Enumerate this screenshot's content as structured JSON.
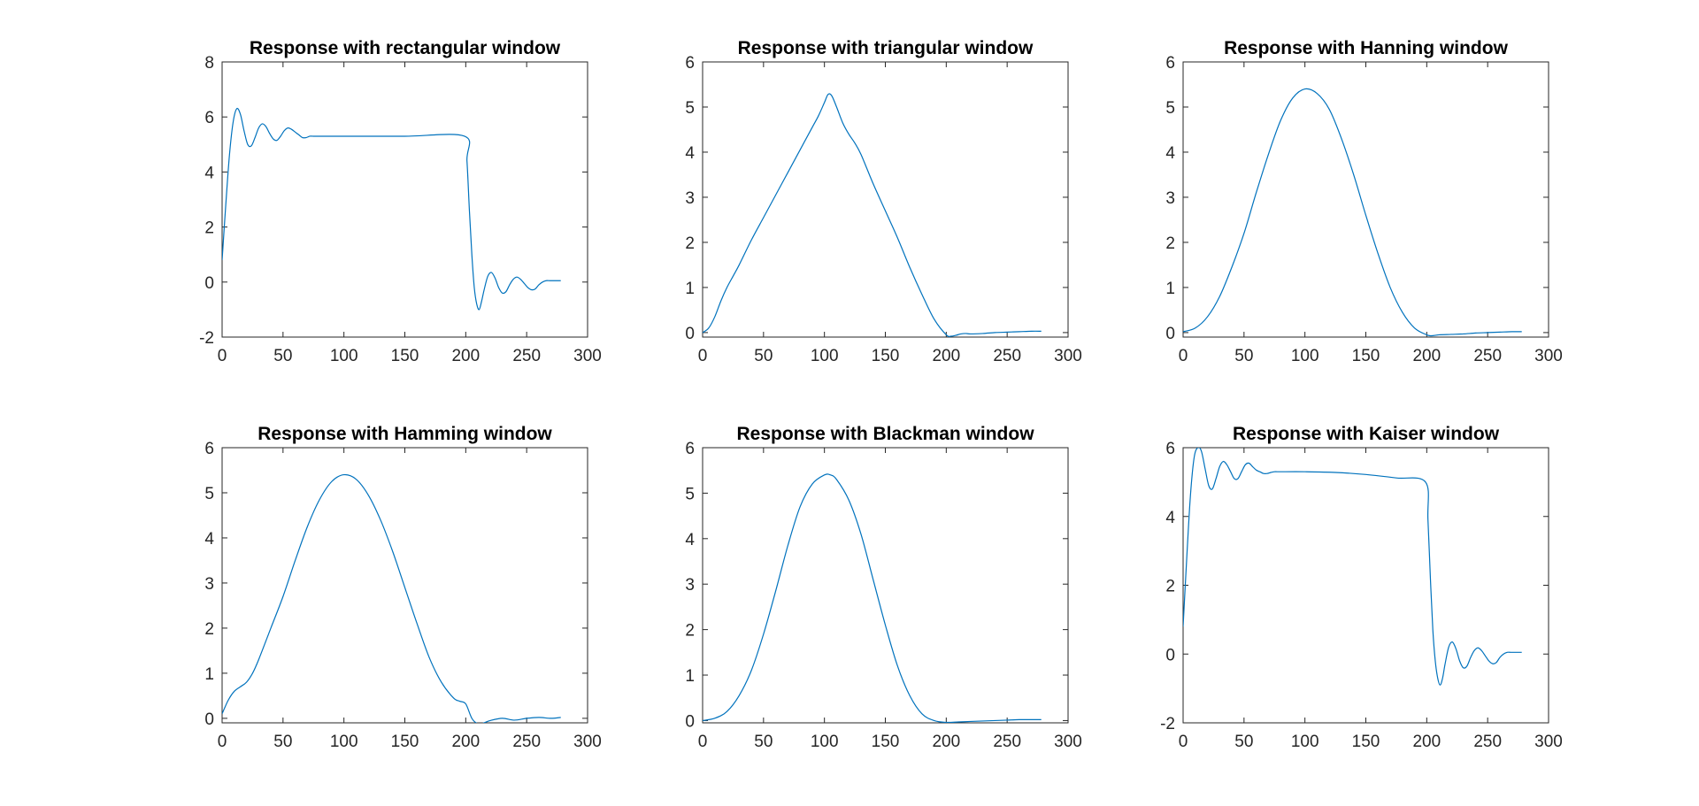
{
  "figure": {
    "background": "#ffffff",
    "line_color": "#0072BD",
    "axis_color": "#262626"
  },
  "chart_data": [
    {
      "type": "line",
      "title": "Response with rectangular window",
      "xlabel": "",
      "ylabel": "",
      "xlim": [
        0,
        300
      ],
      "ylim": [
        -2,
        8
      ],
      "xticks": [
        0,
        50,
        100,
        150,
        200,
        250,
        300
      ],
      "yticks": [
        -2,
        0,
        2,
        4,
        6,
        8
      ],
      "grid": false,
      "series": [
        {
          "x": [
            0,
            3,
            6,
            9,
            12,
            15,
            18,
            21,
            24,
            27,
            30,
            33,
            36,
            39,
            42,
            45,
            48,
            51,
            54,
            57,
            60,
            63,
            66,
            69,
            72,
            75,
            78,
            80,
            100,
            150,
            199,
            201,
            203,
            205,
            207,
            209,
            211,
            213,
            215,
            218,
            221,
            224,
            227,
            230,
            233,
            236,
            239,
            242,
            245,
            248,
            251,
            254,
            257,
            260,
            263,
            266,
            269,
            272,
            275,
            278
          ],
          "y": [
            0.8,
            2.8,
            4.6,
            5.8,
            6.3,
            6.1,
            5.5,
            5.0,
            4.95,
            5.25,
            5.6,
            5.75,
            5.65,
            5.4,
            5.2,
            5.15,
            5.3,
            5.5,
            5.6,
            5.55,
            5.45,
            5.35,
            5.25,
            5.25,
            5.3,
            5.3,
            5.3,
            5.3,
            5.3,
            5.3,
            5.3,
            4.4,
            2.6,
            1.0,
            -0.2,
            -0.8,
            -1.0,
            -0.7,
            -0.3,
            0.2,
            0.35,
            0.15,
            -0.2,
            -0.4,
            -0.35,
            -0.1,
            0.1,
            0.18,
            0.1,
            -0.05,
            -0.2,
            -0.28,
            -0.25,
            -0.1,
            0.0,
            0.05,
            0.05,
            0.05,
            0.05,
            0.05
          ]
        }
      ]
    },
    {
      "type": "line",
      "title": "Response with triangular window",
      "xlabel": "",
      "ylabel": "",
      "xlim": [
        0,
        300
      ],
      "ylim": [
        -0.1,
        6
      ],
      "xticks": [
        0,
        50,
        100,
        150,
        200,
        250,
        300
      ],
      "yticks": [
        0,
        1,
        2,
        3,
        4,
        5,
        6
      ],
      "grid": false,
      "series": [
        {
          "x": [
            0,
            5,
            10,
            15,
            20,
            25,
            30,
            40,
            50,
            60,
            70,
            80,
            90,
            95,
            100,
            103,
            106,
            110,
            115,
            120,
            125,
            130,
            140,
            150,
            160,
            170,
            180,
            190,
            200,
            204,
            208,
            212,
            216,
            220,
            230,
            240,
            250,
            260,
            270,
            278
          ],
          "y": [
            0.0,
            0.1,
            0.35,
            0.7,
            1.0,
            1.25,
            1.5,
            2.05,
            2.55,
            3.05,
            3.55,
            4.05,
            4.55,
            4.8,
            5.1,
            5.28,
            5.25,
            5.0,
            4.65,
            4.4,
            4.2,
            3.95,
            3.3,
            2.7,
            2.1,
            1.45,
            0.85,
            0.3,
            -0.05,
            -0.08,
            -0.06,
            -0.03,
            -0.02,
            -0.03,
            -0.02,
            0.0,
            0.01,
            0.02,
            0.03,
            0.03
          ]
        }
      ]
    },
    {
      "type": "line",
      "title": "Response with Hanning window",
      "xlabel": "",
      "ylabel": "",
      "xlim": [
        0,
        300
      ],
      "ylim": [
        -0.1,
        6
      ],
      "xticks": [
        0,
        50,
        100,
        150,
        200,
        250,
        300
      ],
      "yticks": [
        0,
        1,
        2,
        3,
        4,
        5,
        6
      ],
      "grid": false,
      "series": [
        {
          "x": [
            0,
            10,
            20,
            30,
            40,
            50,
            60,
            70,
            80,
            90,
            100,
            110,
            120,
            130,
            140,
            150,
            160,
            170,
            180,
            190,
            200,
            204,
            210,
            220,
            230,
            240,
            250,
            260,
            270,
            278
          ],
          "y": [
            0.02,
            0.1,
            0.35,
            0.8,
            1.45,
            2.2,
            3.1,
            3.95,
            4.7,
            5.2,
            5.4,
            5.3,
            4.95,
            4.3,
            3.5,
            2.6,
            1.75,
            1.0,
            0.45,
            0.1,
            -0.05,
            -0.07,
            -0.05,
            -0.04,
            -0.03,
            -0.01,
            0.0,
            0.01,
            0.02,
            0.02
          ]
        }
      ]
    },
    {
      "type": "line",
      "title": "Response with Hamming window",
      "xlabel": "",
      "ylabel": "",
      "xlim": [
        0,
        300
      ],
      "ylim": [
        -0.1,
        6
      ],
      "xticks": [
        0,
        50,
        100,
        150,
        200,
        250,
        300
      ],
      "yticks": [
        0,
        1,
        2,
        3,
        4,
        5,
        6
      ],
      "grid": false,
      "series": [
        {
          "x": [
            0,
            5,
            10,
            15,
            20,
            25,
            30,
            40,
            50,
            60,
            70,
            80,
            90,
            100,
            110,
            120,
            130,
            140,
            150,
            160,
            170,
            180,
            190,
            195,
            200,
            205,
            210,
            215,
            220,
            230,
            240,
            250,
            260,
            270,
            278
          ],
          "y": [
            0.1,
            0.4,
            0.6,
            0.7,
            0.8,
            1.0,
            1.3,
            2.0,
            2.7,
            3.5,
            4.25,
            4.85,
            5.25,
            5.4,
            5.3,
            4.95,
            4.4,
            3.7,
            2.9,
            2.1,
            1.35,
            0.8,
            0.45,
            0.38,
            0.32,
            0.0,
            -0.12,
            -0.1,
            -0.05,
            0.0,
            -0.04,
            0.0,
            0.02,
            0.0,
            0.02
          ]
        }
      ]
    },
    {
      "type": "line",
      "title": "Response with Blackman window",
      "xlabel": "",
      "ylabel": "",
      "xlim": [
        0,
        300
      ],
      "ylim": [
        -0.05,
        6
      ],
      "xticks": [
        0,
        50,
        100,
        150,
        200,
        250,
        300
      ],
      "yticks": [
        0,
        1,
        2,
        3,
        4,
        5,
        6
      ],
      "grid": false,
      "series": [
        {
          "x": [
            0,
            10,
            20,
            30,
            40,
            50,
            60,
            70,
            80,
            90,
            100,
            105,
            110,
            120,
            130,
            140,
            150,
            160,
            170,
            180,
            190,
            200,
            210,
            220,
            230,
            240,
            250,
            260,
            270,
            278
          ],
          "y": [
            0.0,
            0.05,
            0.2,
            0.55,
            1.1,
            1.9,
            2.85,
            3.85,
            4.7,
            5.2,
            5.4,
            5.4,
            5.3,
            4.85,
            4.1,
            3.1,
            2.1,
            1.2,
            0.55,
            0.15,
            0.0,
            -0.04,
            -0.03,
            -0.02,
            -0.01,
            0.0,
            0.01,
            0.02,
            0.02,
            0.02
          ]
        }
      ]
    },
    {
      "type": "line",
      "title": "Response with Kaiser window",
      "xlabel": "",
      "ylabel": "",
      "xlim": [
        0,
        300
      ],
      "ylim": [
        -2,
        6
      ],
      "xticks": [
        0,
        50,
        100,
        150,
        200,
        250,
        300
      ],
      "yticks": [
        -2,
        0,
        2,
        4,
        6
      ],
      "grid": false,
      "series": [
        {
          "x": [
            0,
            3,
            6,
            9,
            12,
            15,
            18,
            21,
            24,
            27,
            30,
            33,
            36,
            39,
            42,
            45,
            48,
            51,
            54,
            57,
            60,
            63,
            66,
            69,
            72,
            75,
            78,
            80,
            100,
            125,
            150,
            175,
            199,
            201,
            203,
            205,
            207,
            209,
            211,
            213,
            215,
            218,
            221,
            224,
            227,
            230,
            233,
            236,
            239,
            242,
            245,
            248,
            251,
            254,
            257,
            260,
            263,
            266,
            269,
            272,
            275,
            278
          ],
          "y": [
            0.8,
            2.8,
            4.6,
            5.7,
            6.0,
            5.9,
            5.4,
            4.9,
            4.8,
            5.1,
            5.45,
            5.6,
            5.5,
            5.3,
            5.1,
            5.1,
            5.3,
            5.5,
            5.55,
            5.45,
            5.35,
            5.3,
            5.25,
            5.25,
            5.28,
            5.3,
            5.3,
            5.3,
            5.3,
            5.28,
            5.22,
            5.12,
            5.0,
            3.9,
            2.2,
            0.7,
            -0.2,
            -0.7,
            -0.9,
            -0.7,
            -0.3,
            0.2,
            0.35,
            0.15,
            -0.2,
            -0.4,
            -0.35,
            -0.1,
            0.1,
            0.18,
            0.1,
            -0.05,
            -0.2,
            -0.28,
            -0.25,
            -0.1,
            0.0,
            0.05,
            0.05,
            0.05,
            0.05,
            0.05
          ]
        }
      ]
    }
  ]
}
